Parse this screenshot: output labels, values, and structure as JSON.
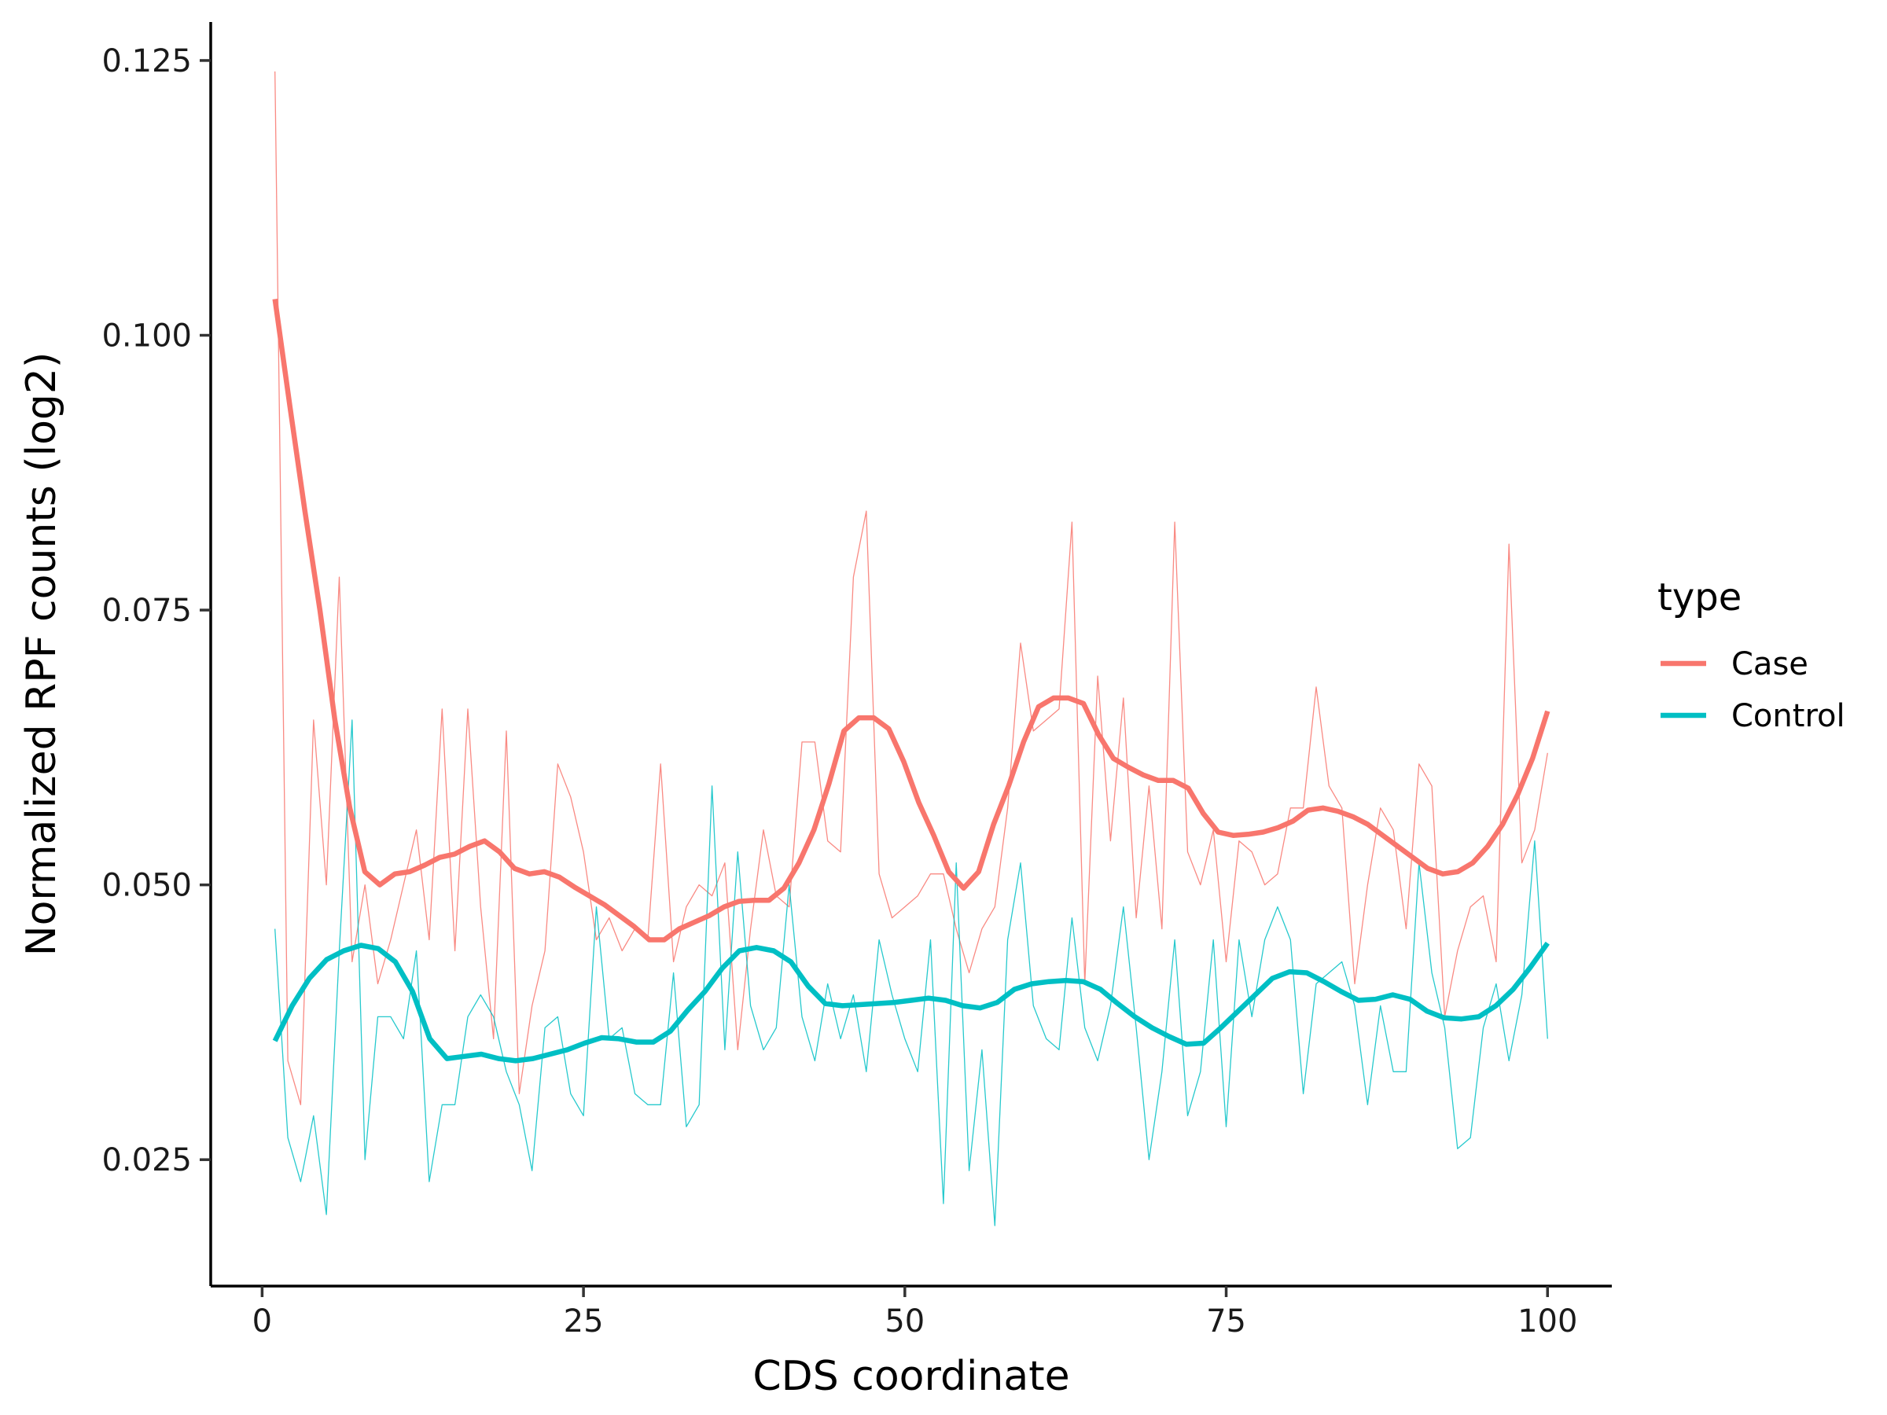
{
  "chart_data": {
    "type": "line",
    "xlabel": "CDS coordinate",
    "ylabel": "Normalized RPF counts (log2)",
    "xlim": [
      -4,
      105
    ],
    "ylim": [
      0.0135,
      0.1285
    ],
    "x_ticks": [
      0,
      25,
      50,
      75,
      100
    ],
    "x_tick_labels": [
      "0",
      "25",
      "50",
      "75",
      "100"
    ],
    "y_ticks": [
      0.025,
      0.05,
      0.075,
      0.1,
      0.125
    ],
    "y_tick_labels": [
      "0.025",
      "0.050",
      "0.075",
      "0.100",
      "0.125"
    ],
    "grid": false,
    "legend": {
      "title": "type",
      "position": "right",
      "entries": [
        "Case",
        "Control"
      ]
    },
    "x": [
      1,
      2,
      3,
      4,
      5,
      6,
      7,
      8,
      9,
      10,
      11,
      12,
      13,
      14,
      15,
      16,
      17,
      18,
      19,
      20,
      21,
      22,
      23,
      24,
      25,
      26,
      27,
      28,
      29,
      30,
      31,
      32,
      33,
      34,
      35,
      36,
      37,
      38,
      39,
      40,
      41,
      42,
      43,
      44,
      45,
      46,
      47,
      48,
      49,
      50,
      51,
      52,
      53,
      54,
      55,
      56,
      57,
      58,
      59,
      60,
      61,
      62,
      63,
      64,
      65,
      66,
      67,
      68,
      69,
      70,
      71,
      72,
      73,
      74,
      75,
      76,
      77,
      78,
      79,
      80,
      81,
      82,
      83,
      84,
      85,
      86,
      87,
      88,
      89,
      90,
      91,
      92,
      93,
      94,
      95,
      96,
      97,
      98,
      99,
      100
    ],
    "series": [
      {
        "name": "Case",
        "color": "#F8766D",
        "raw": [
          0.124,
          0.034,
          0.03,
          0.065,
          0.05,
          0.078,
          0.043,
          0.05,
          0.041,
          0.045,
          0.05,
          0.055,
          0.045,
          0.066,
          0.044,
          0.066,
          0.048,
          0.036,
          0.064,
          0.031,
          0.039,
          0.044,
          0.061,
          0.058,
          0.053,
          0.045,
          0.047,
          0.044,
          0.046,
          0.045,
          0.061,
          0.043,
          0.048,
          0.05,
          0.049,
          0.052,
          0.035,
          0.046,
          0.055,
          0.049,
          0.048,
          0.063,
          0.063,
          0.054,
          0.053,
          0.078,
          0.084,
          0.051,
          0.047,
          0.048,
          0.049,
          0.051,
          0.051,
          0.046,
          0.042,
          0.046,
          0.048,
          0.057,
          0.072,
          0.064,
          0.065,
          0.066,
          0.083,
          0.041,
          0.069,
          0.054,
          0.067,
          0.047,
          0.059,
          0.046,
          0.083,
          0.053,
          0.05,
          0.055,
          0.043,
          0.054,
          0.053,
          0.05,
          0.051,
          0.057,
          0.057,
          0.068,
          0.059,
          0.057,
          0.041,
          0.05,
          0.057,
          0.055,
          0.046,
          0.061,
          0.059,
          0.038,
          0.044,
          0.048,
          0.049,
          0.043,
          0.081,
          0.052,
          0.055,
          0.062
        ],
        "smooth": [
          0.1033,
          0.0935,
          0.084,
          0.075,
          0.065,
          0.057,
          0.0512,
          0.05,
          0.051,
          0.0512,
          0.0518,
          0.0525,
          0.0528,
          0.0535,
          0.054,
          0.053,
          0.0515,
          0.051,
          0.0512,
          0.0507,
          0.0498,
          0.049,
          0.0482,
          0.0472,
          0.0462,
          0.045,
          0.045,
          0.046,
          0.0466,
          0.0472,
          0.048,
          0.0485,
          0.0486,
          0.0486,
          0.0497,
          0.052,
          0.055,
          0.0592,
          0.064,
          0.0652,
          0.0652,
          0.0642,
          0.0612,
          0.0575,
          0.0545,
          0.0512,
          0.0497,
          0.0512,
          0.0555,
          0.059,
          0.063,
          0.0662,
          0.067,
          0.067,
          0.0665,
          0.0637,
          0.0615,
          0.0607,
          0.06,
          0.0595,
          0.0595,
          0.0588,
          0.0565,
          0.0548,
          0.0545,
          0.0546,
          0.0548,
          0.0552,
          0.0558,
          0.0568,
          0.057,
          0.0567,
          0.0562,
          0.0555,
          0.0545,
          0.0535,
          0.0525,
          0.0515,
          0.051,
          0.0512,
          0.052,
          0.0535,
          0.0555,
          0.0582,
          0.0615,
          0.0658
        ]
      },
      {
        "name": "Control",
        "color": "#00BFC4",
        "raw": [
          0.046,
          0.027,
          0.023,
          0.029,
          0.02,
          0.044,
          0.065,
          0.025,
          0.038,
          0.038,
          0.036,
          0.044,
          0.023,
          0.03,
          0.03,
          0.038,
          0.04,
          0.038,
          0.033,
          0.03,
          0.024,
          0.037,
          0.038,
          0.031,
          0.029,
          0.048,
          0.036,
          0.037,
          0.031,
          0.03,
          0.03,
          0.042,
          0.028,
          0.03,
          0.059,
          0.035,
          0.053,
          0.039,
          0.035,
          0.037,
          0.05,
          0.038,
          0.034,
          0.041,
          0.036,
          0.04,
          0.033,
          0.045,
          0.04,
          0.036,
          0.033,
          0.045,
          0.021,
          0.052,
          0.024,
          0.035,
          0.019,
          0.045,
          0.052,
          0.039,
          0.036,
          0.035,
          0.047,
          0.037,
          0.034,
          0.039,
          0.048,
          0.037,
          0.025,
          0.033,
          0.045,
          0.029,
          0.033,
          0.045,
          0.028,
          0.045,
          0.038,
          0.045,
          0.048,
          0.045,
          0.031,
          0.041,
          0.042,
          0.043,
          0.039,
          0.03,
          0.039,
          0.033,
          0.033,
          0.052,
          0.042,
          0.037,
          0.026,
          0.027,
          0.037,
          0.041,
          0.034,
          0.04,
          0.054,
          0.036
        ],
        "smooth": [
          0.0358,
          0.039,
          0.0415,
          0.0432,
          0.044,
          0.0445,
          0.0442,
          0.043,
          0.0403,
          0.036,
          0.0342,
          0.0344,
          0.0346,
          0.0342,
          0.034,
          0.0342,
          0.0346,
          0.035,
          0.0356,
          0.0361,
          0.036,
          0.0357,
          0.0357,
          0.0367,
          0.0386,
          0.0403,
          0.0424,
          0.044,
          0.0443,
          0.044,
          0.043,
          0.0408,
          0.0392,
          0.039,
          0.0391,
          0.0392,
          0.0393,
          0.0395,
          0.0397,
          0.0395,
          0.039,
          0.0388,
          0.0393,
          0.0405,
          0.041,
          0.0412,
          0.0413,
          0.0412,
          0.0405,
          0.0392,
          0.038,
          0.037,
          0.0362,
          0.0355,
          0.0356,
          0.037,
          0.0385,
          0.04,
          0.0415,
          0.0421,
          0.042,
          0.0412,
          0.0403,
          0.0395,
          0.0396,
          0.04,
          0.0396,
          0.0385,
          0.0379,
          0.0378,
          0.038,
          0.039,
          0.0405,
          0.0425,
          0.0447
        ]
      }
    ]
  }
}
